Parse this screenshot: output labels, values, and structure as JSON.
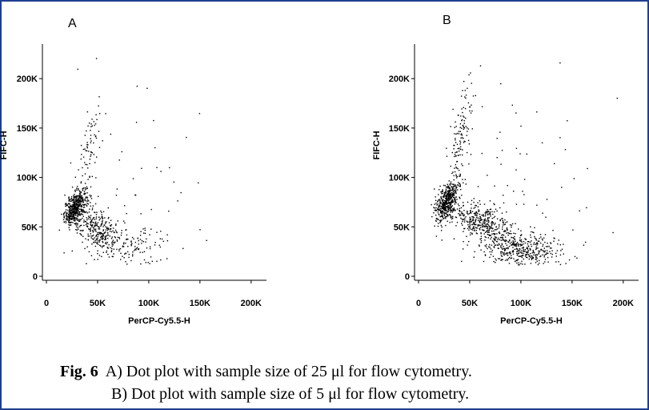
{
  "chart_data": [
    {
      "type": "scatter",
      "panel_label": "A",
      "xlabel": "PerCP-Cy5.5-H",
      "ylabel": "FIFC-H",
      "xlim": [
        0,
        215000
      ],
      "ylim": [
        0,
        235000
      ],
      "x_ticks": [
        {
          "value": 0,
          "label": "0"
        },
        {
          "value": 50000,
          "label": "50K"
        },
        {
          "value": 100000,
          "label": "100K"
        },
        {
          "value": 150000,
          "label": "150K"
        },
        {
          "value": 200000,
          "label": "200K"
        }
      ],
      "y_ticks": [
        {
          "value": 0,
          "label": "0"
        },
        {
          "value": 50000,
          "label": "50K"
        },
        {
          "value": 100000,
          "label": "100K"
        },
        {
          "value": 150000,
          "label": "150K"
        },
        {
          "value": 200000,
          "label": "200K"
        }
      ],
      "clusters": [
        {
          "cx": 28000,
          "cy": 70000,
          "sx": 5500,
          "sy": 9000,
          "n": 500,
          "rho": 0.5
        },
        {
          "cx": 50000,
          "cy": 48000,
          "sx": 11000,
          "sy": 11000,
          "n": 280,
          "rho": -0.3
        },
        {
          "cx": 80000,
          "cy": 28000,
          "sx": 20000,
          "sy": 12000,
          "n": 140,
          "rho": 0
        },
        {
          "cx": 42000,
          "cy": 130000,
          "sx": 6000,
          "sy": 22000,
          "n": 70,
          "rho": 0.6
        },
        {
          "cx": 90000,
          "cy": 90000,
          "sx": 35000,
          "sy": 50000,
          "n": 55,
          "rho": 0
        }
      ],
      "grid": false
    },
    {
      "type": "scatter",
      "panel_label": "B",
      "xlabel": "PerCP-Cy5.5-H",
      "ylabel": "FIFC-H",
      "xlim": [
        0,
        215000
      ],
      "ylim": [
        0,
        235000
      ],
      "x_ticks": [
        {
          "value": 0,
          "label": "0"
        },
        {
          "value": 50000,
          "label": "50K"
        },
        {
          "value": 100000,
          "label": "100K"
        },
        {
          "value": 150000,
          "label": "150K"
        },
        {
          "value": 200000,
          "label": "200K"
        }
      ],
      "y_ticks": [
        {
          "value": 0,
          "label": "0"
        },
        {
          "value": 50000,
          "label": "50K"
        },
        {
          "value": 100000,
          "label": "100K"
        },
        {
          "value": 150000,
          "label": "150K"
        },
        {
          "value": 200000,
          "label": "200K"
        }
      ],
      "clusters": [
        {
          "cx": 27000,
          "cy": 75000,
          "sx": 5500,
          "sy": 10000,
          "n": 450,
          "rho": 0.5
        },
        {
          "cx": 60000,
          "cy": 55000,
          "sx": 15000,
          "sy": 10000,
          "n": 380,
          "rho": -0.4
        },
        {
          "cx": 100000,
          "cy": 28000,
          "sx": 22000,
          "sy": 9000,
          "n": 420,
          "rho": -0.2
        },
        {
          "cx": 40000,
          "cy": 140000,
          "sx": 6000,
          "sy": 30000,
          "n": 140,
          "rho": 0.6
        },
        {
          "cx": 100000,
          "cy": 100000,
          "sx": 40000,
          "sy": 50000,
          "n": 60,
          "rho": 0
        }
      ],
      "grid": false
    }
  ],
  "caption": {
    "fig_label": "Fig. 6",
    "line1": "A) Dot plot with sample size of 25 μl for flow cytometry.",
    "line2": "B) Dot plot with sample size of 5 μl for flow cytometry."
  },
  "colors": {
    "frame": "#1f3f8f",
    "dots": "#000000"
  }
}
